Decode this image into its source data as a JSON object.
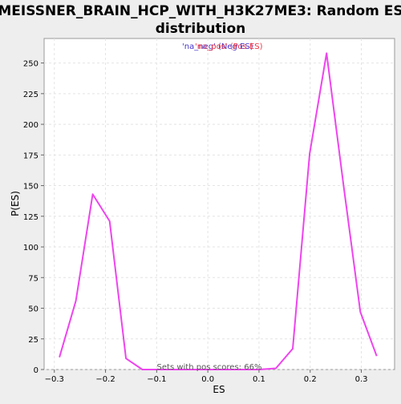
{
  "chart_data": {
    "type": "line",
    "title_line1": "MEISSNER_BRAIN_HCP_WITH_H3K27ME3: Random ES",
    "title_line2": "distribution",
    "xlabel": "ES",
    "ylabel": "P(ES)",
    "xlim": [
      -0.32,
      0.365
    ],
    "ylim": [
      0,
      270
    ],
    "x_ticks": [
      -0.3,
      -0.2,
      -0.1,
      0.0,
      0.1,
      0.2,
      0.3
    ],
    "x_tick_labels": [
      "−0.3",
      "−0.2",
      "−0.1",
      "0.0",
      "0.1",
      "0.2",
      "0.3"
    ],
    "y_ticks": [
      0,
      25,
      50,
      75,
      100,
      125,
      150,
      175,
      200,
      225,
      250
    ],
    "y_tick_labels": [
      "0",
      "25",
      "50",
      "75",
      "100",
      "125",
      "150",
      "175",
      "200",
      "225",
      "250"
    ],
    "grid": true,
    "legend": {
      "placement": "top-center",
      "entries": [
        {
          "text": "'na_neg' (Neg ES)",
          "color": "#4433cc"
        },
        {
          "text": "'na_pos' (Pos ES)",
          "color": "#ee3344"
        }
      ]
    },
    "annotation": "Sets with pos scores: 66%",
    "series": [
      {
        "color": "#ee44ee",
        "x": [
          -0.29,
          -0.258,
          -0.225,
          -0.192,
          -0.16,
          -0.128,
          -0.095,
          -0.062,
          -0.03,
          0.002,
          0.035,
          0.068,
          0.1,
          0.133,
          0.166,
          0.199,
          0.232,
          0.265,
          0.298,
          0.33
        ],
        "y": [
          10,
          56,
          143,
          121,
          9,
          0,
          0,
          0,
          0,
          0,
          0,
          0,
          0,
          1,
          17,
          176,
          258,
          151,
          47,
          11
        ]
      }
    ]
  }
}
